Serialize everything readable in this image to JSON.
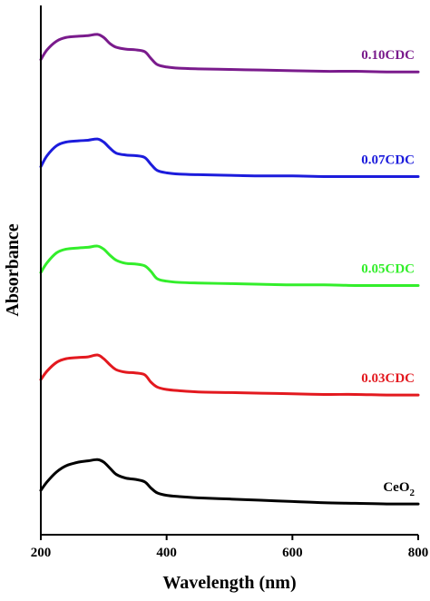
{
  "chart_data": {
    "type": "line",
    "title": "",
    "xlabel": "Wavelength (nm)",
    "ylabel": "Absorbance",
    "xlim": [
      200,
      800
    ],
    "xticks": [
      200,
      400,
      600,
      800
    ],
    "y_ticks_shown": false,
    "grid": false,
    "legend": "none (series labelled directly above each curve)",
    "stacked_offset": true,
    "series": [
      {
        "name": "CeO2",
        "label_main": "CeO",
        "label_sub": "2",
        "color": "#000000",
        "x": [
          200,
          210,
          225,
          240,
          260,
          275,
          290,
          300,
          310,
          320,
          335,
          350,
          365,
          375,
          385,
          400,
          420,
          450,
          500,
          550,
          600,
          650,
          700,
          750,
          800
        ],
        "y": [
          0.56,
          0.63,
          0.71,
          0.76,
          0.79,
          0.8,
          0.81,
          0.79,
          0.74,
          0.69,
          0.66,
          0.65,
          0.63,
          0.58,
          0.54,
          0.52,
          0.51,
          0.5,
          0.49,
          0.48,
          0.47,
          0.46,
          0.455,
          0.45,
          0.45
        ]
      },
      {
        "name": "0.03CDC",
        "color": "#e3191f",
        "x": [
          200,
          210,
          225,
          240,
          260,
          275,
          290,
          300,
          310,
          320,
          335,
          350,
          365,
          375,
          385,
          400,
          420,
          450,
          500,
          550,
          600,
          650,
          700,
          750,
          800
        ],
        "y": [
          1.46,
          1.53,
          1.6,
          1.63,
          1.64,
          1.645,
          1.66,
          1.63,
          1.58,
          1.54,
          1.52,
          1.515,
          1.5,
          1.44,
          1.4,
          1.38,
          1.37,
          1.36,
          1.355,
          1.35,
          1.345,
          1.34,
          1.34,
          1.335,
          1.335
        ]
      },
      {
        "name": "0.05CDC",
        "color": "#33ee2b",
        "x": [
          200,
          210,
          225,
          240,
          260,
          275,
          290,
          300,
          310,
          320,
          335,
          350,
          365,
          375,
          385,
          400,
          420,
          450,
          500,
          550,
          600,
          650,
          700,
          750,
          800
        ],
        "y": [
          2.33,
          2.41,
          2.49,
          2.52,
          2.53,
          2.535,
          2.545,
          2.52,
          2.47,
          2.43,
          2.405,
          2.4,
          2.385,
          2.34,
          2.28,
          2.26,
          2.25,
          2.245,
          2.24,
          2.235,
          2.23,
          2.23,
          2.225,
          2.225,
          2.225
        ]
      },
      {
        "name": "0.07CDC",
        "color": "#1c1cdc",
        "x": [
          200,
          210,
          225,
          240,
          260,
          275,
          290,
          300,
          310,
          320,
          335,
          350,
          365,
          375,
          385,
          400,
          420,
          450,
          500,
          550,
          600,
          650,
          700,
          750,
          800
        ],
        "y": [
          3.19,
          3.28,
          3.36,
          3.39,
          3.4,
          3.405,
          3.415,
          3.39,
          3.34,
          3.3,
          3.285,
          3.28,
          3.265,
          3.21,
          3.16,
          3.14,
          3.13,
          3.125,
          3.12,
          3.115,
          3.115,
          3.11,
          3.11,
          3.11,
          3.11
        ]
      },
      {
        "name": "0.10CDC",
        "color": "#7a1b8c",
        "x": [
          200,
          210,
          225,
          240,
          260,
          275,
          290,
          300,
          310,
          320,
          335,
          350,
          365,
          375,
          385,
          400,
          420,
          450,
          500,
          550,
          600,
          650,
          700,
          750,
          800
        ],
        "y": [
          4.06,
          4.14,
          4.21,
          4.24,
          4.25,
          4.255,
          4.265,
          4.24,
          4.19,
          4.16,
          4.145,
          4.14,
          4.125,
          4.07,
          4.02,
          4.0,
          3.99,
          3.985,
          3.98,
          3.975,
          3.97,
          3.965,
          3.965,
          3.96,
          3.96
        ]
      }
    ]
  }
}
